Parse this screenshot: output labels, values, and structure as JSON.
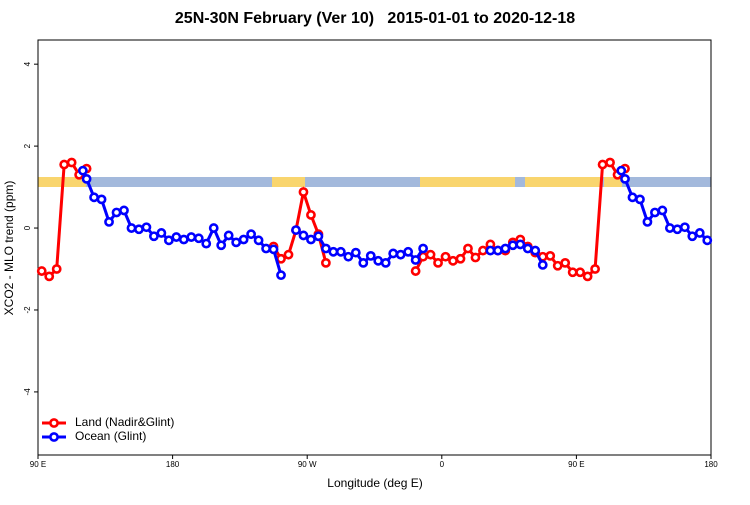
{
  "chart_data": {
    "type": "line",
    "title": "25N-30N February (Ver 10)   2015-01-01 to 2020-12-18",
    "x_label": "Longitude (deg E)",
    "y_label": "XCO2 - MLO trend (ppm)",
    "xlim": [
      90,
      540
    ],
    "xticks": [
      {
        "value": 90,
        "label": "90 E"
      },
      180,
      {
        "value": 270,
        "label": "90 W"
      },
      {
        "value": 360,
        "label": "0"
      },
      {
        "value": 450,
        "label": "90 E"
      },
      {
        "value": 540,
        "label": "180"
      }
    ],
    "ylim": [
      -5.54,
      4.59
    ],
    "yticks": [
      -4,
      -2,
      0,
      2,
      4
    ],
    "legend": "bottom-left",
    "series": [
      {
        "name": "Land (Nadir&Glint)",
        "color": "#ff0000",
        "x": [
          92.5,
          97.5,
          102.5,
          107.5,
          112.5,
          117.5,
          122.5,
          127.5,
          247.5,
          252.5,
          257.5,
          262.5,
          267.5,
          272.5,
          277.5,
          282.5,
          287.5,
          342.5,
          347.5,
          352.5,
          357.5,
          362.5,
          367.5,
          372.5,
          377.5,
          382.5,
          387.5,
          392.5,
          397.5,
          402.5,
          407.5,
          412.5,
          417.5,
          422.5,
          427.5,
          432.5,
          437.5,
          442.5,
          447.5,
          452.5,
          457.5,
          462.5,
          467.5,
          472.5,
          477.5,
          482.5
        ],
        "values": [
          -1.05,
          -1.18,
          -1.0,
          1.55,
          1.6,
          1.3,
          1.45,
          null,
          -0.45,
          -0.75,
          -0.65,
          -0.05,
          0.88,
          0.32,
          -0.15,
          -0.85,
          null,
          -1.05,
          -0.7,
          -0.65,
          -0.85,
          -0.7,
          -0.8,
          -0.75,
          -0.5,
          -0.72,
          -0.55,
          -0.4,
          -0.55,
          -0.55,
          -0.35,
          -0.28,
          -0.45,
          -0.6,
          -0.7,
          -0.68,
          -0.92,
          -0.85,
          -1.08,
          -1.08,
          -1.18,
          -1.0,
          1.55,
          1.6,
          1.3,
          1.45
        ]
      },
      {
        "name": "Ocean (Glint)",
        "color": "#0000ff",
        "x": [
          120,
          122.5,
          127.5,
          132.5,
          137.5,
          142.5,
          147.5,
          152.5,
          157.5,
          162.5,
          167.5,
          172.5,
          177.5,
          182.5,
          187.5,
          192.5,
          197.5,
          202.5,
          207.5,
          212.5,
          217.5,
          222.5,
          227.5,
          232.5,
          237.5,
          242.5,
          247.5,
          252.5,
          257.5,
          262.5,
          267.5,
          272.5,
          277.5,
          282.5,
          287.5,
          292.5,
          297.5,
          302.5,
          307.5,
          312.5,
          317.5,
          322.5,
          327.5,
          332.5,
          337.5,
          342.5,
          347.5,
          352.5,
          392.5,
          397.5,
          402.5,
          407.5,
          412.5,
          417.5,
          422.5,
          427.5,
          432.5,
          480,
          482.5,
          487.5,
          492.5,
          497.5,
          502.5,
          507.5,
          512.5,
          517.5,
          522.5,
          527.5,
          532.5,
          537.5
        ],
        "values": [
          1.4,
          1.2,
          0.75,
          0.7,
          0.15,
          0.38,
          0.43,
          0.0,
          -0.03,
          0.02,
          -0.2,
          -0.12,
          -0.3,
          -0.22,
          -0.28,
          -0.22,
          -0.25,
          -0.38,
          0.0,
          -0.42,
          -0.18,
          -0.35,
          -0.28,
          -0.15,
          -0.3,
          -0.5,
          -0.52,
          -1.15,
          null,
          -0.05,
          -0.18,
          -0.28,
          -0.2,
          -0.5,
          -0.58,
          -0.58,
          -0.7,
          -0.6,
          -0.85,
          -0.68,
          -0.8,
          -0.85,
          -0.62,
          -0.65,
          -0.58,
          -0.78,
          -0.5,
          null,
          -0.55,
          -0.55,
          -0.5,
          -0.42,
          -0.4,
          -0.5,
          -0.55,
          -0.9,
          null,
          1.4,
          1.2,
          0.75,
          0.7,
          0.15,
          0.38,
          0.43,
          0.0,
          -0.03,
          0.02,
          -0.2,
          -0.12,
          -0.3
        ]
      }
    ]
  }
}
